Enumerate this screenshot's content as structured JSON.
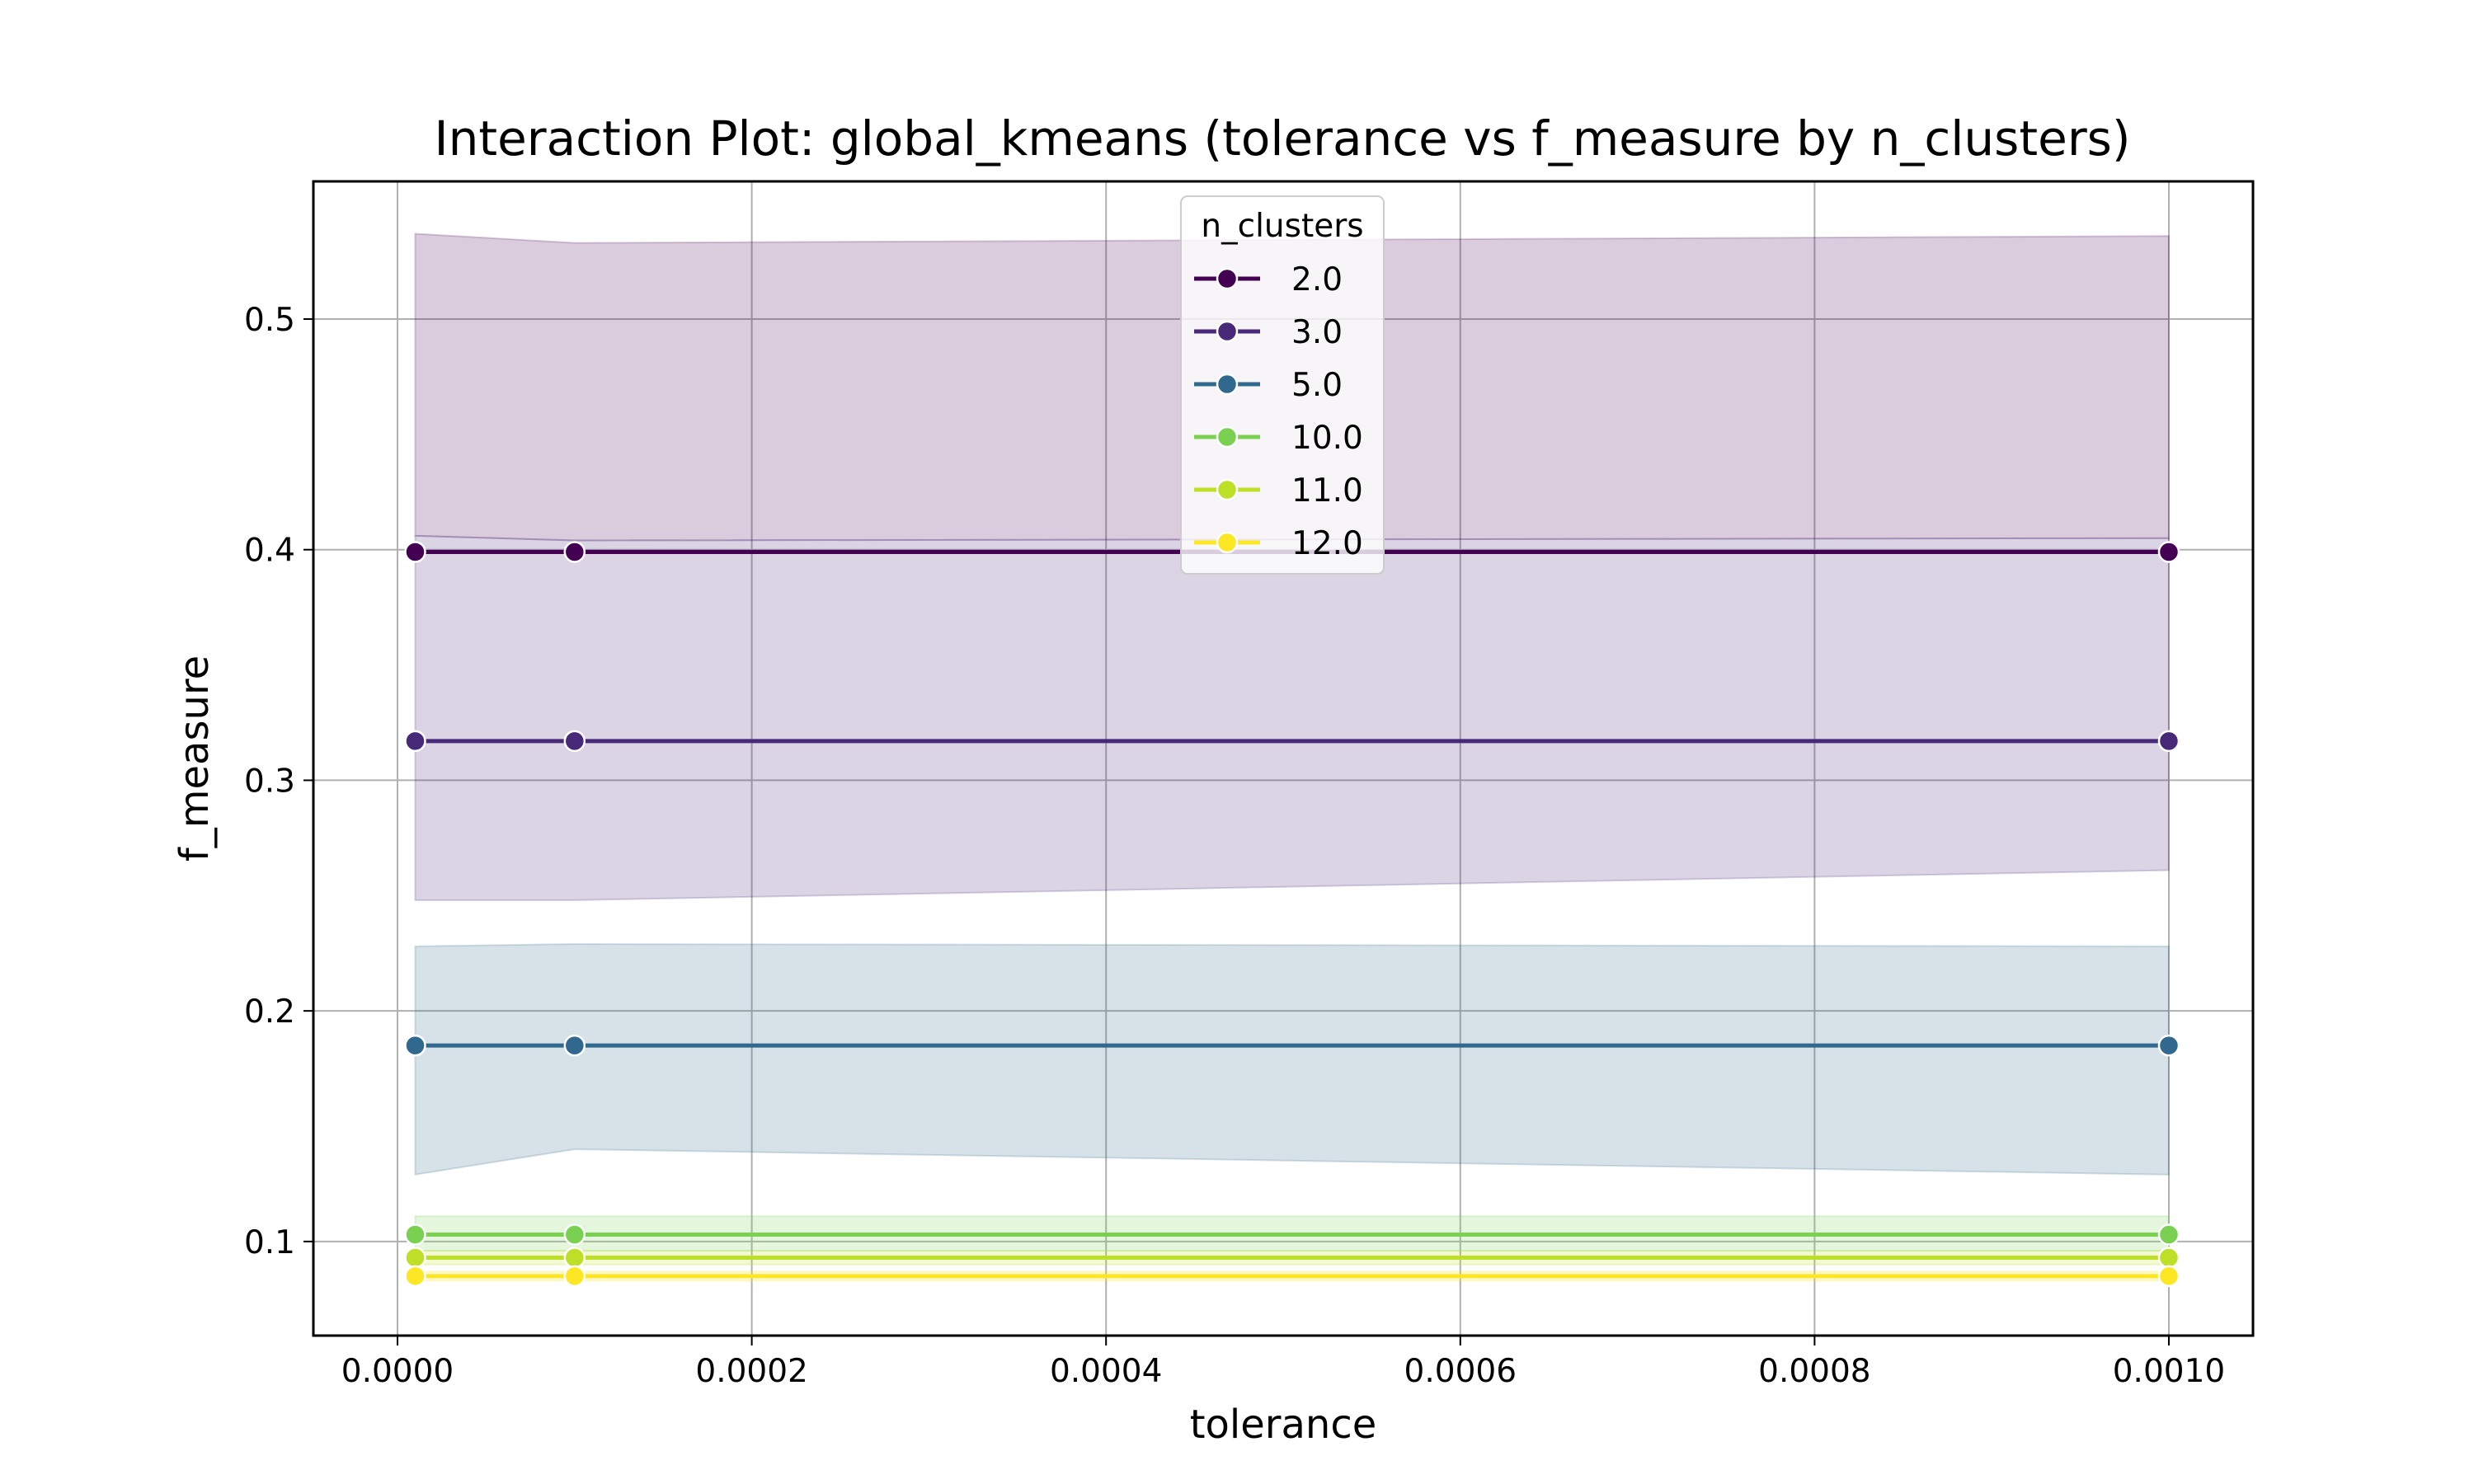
{
  "chart_data": {
    "type": "line",
    "title": "Interaction Plot: global_kmeans (tolerance vs f_measure by n_clusters)",
    "xlabel": "tolerance",
    "ylabel": "f_measure",
    "xlim": [
      -4.75e-05,
      0.0010475
    ],
    "ylim": [
      0.0592,
      0.5597
    ],
    "x_ticks": [
      0.0,
      0.0002,
      0.0004,
      0.0006,
      0.0008,
      0.001
    ],
    "x_tick_labels": [
      "0.0000",
      "0.0002",
      "0.0004",
      "0.0006",
      "0.0008",
      "0.0010"
    ],
    "y_ticks": [
      0.1,
      0.2,
      0.3,
      0.4,
      0.5
    ],
    "y_tick_labels": [
      "0.1",
      "0.2",
      "0.3",
      "0.4",
      "0.5"
    ],
    "grid": true,
    "legend": {
      "title": "n_clusters",
      "placement": "top-center"
    },
    "x": [
      1e-05,
      0.0001,
      0.001
    ],
    "series": [
      {
        "name": "2.0",
        "color": "#440154",
        "values": [
          0.399,
          0.399,
          0.399
        ],
        "ci_lower": [
          0.406,
          0.404,
          0.405
        ],
        "ci_upper": [
          0.537,
          0.533,
          0.536
        ]
      },
      {
        "name": "3.0",
        "color": "#482878",
        "values": [
          0.317,
          0.317,
          0.317
        ],
        "ci_lower": [
          0.248,
          0.248,
          0.261
        ],
        "ci_upper": [
          0.406,
          0.404,
          0.405
        ]
      },
      {
        "name": "5.0",
        "color": "#31688e",
        "values": [
          0.185,
          0.185,
          0.185
        ],
        "ci_lower": [
          0.129,
          0.14,
          0.129
        ],
        "ci_upper": [
          0.228,
          0.229,
          0.228
        ]
      },
      {
        "name": "10.0",
        "color": "#7ad151",
        "values": [
          0.103,
          0.103,
          0.103
        ],
        "ci_lower": [
          0.096,
          0.096,
          0.096
        ],
        "ci_upper": [
          0.111,
          0.111,
          0.111
        ]
      },
      {
        "name": "11.0",
        "color": "#bddf26",
        "values": [
          0.093,
          0.093,
          0.093
        ],
        "ci_lower": [
          0.09,
          0.09,
          0.09
        ],
        "ci_upper": [
          0.096,
          0.096,
          0.096
        ]
      },
      {
        "name": "12.0",
        "color": "#fde725",
        "values": [
          0.085,
          0.085,
          0.085
        ],
        "ci_lower": [
          0.083,
          0.083,
          0.083
        ],
        "ci_upper": [
          0.087,
          0.087,
          0.087
        ]
      }
    ]
  }
}
